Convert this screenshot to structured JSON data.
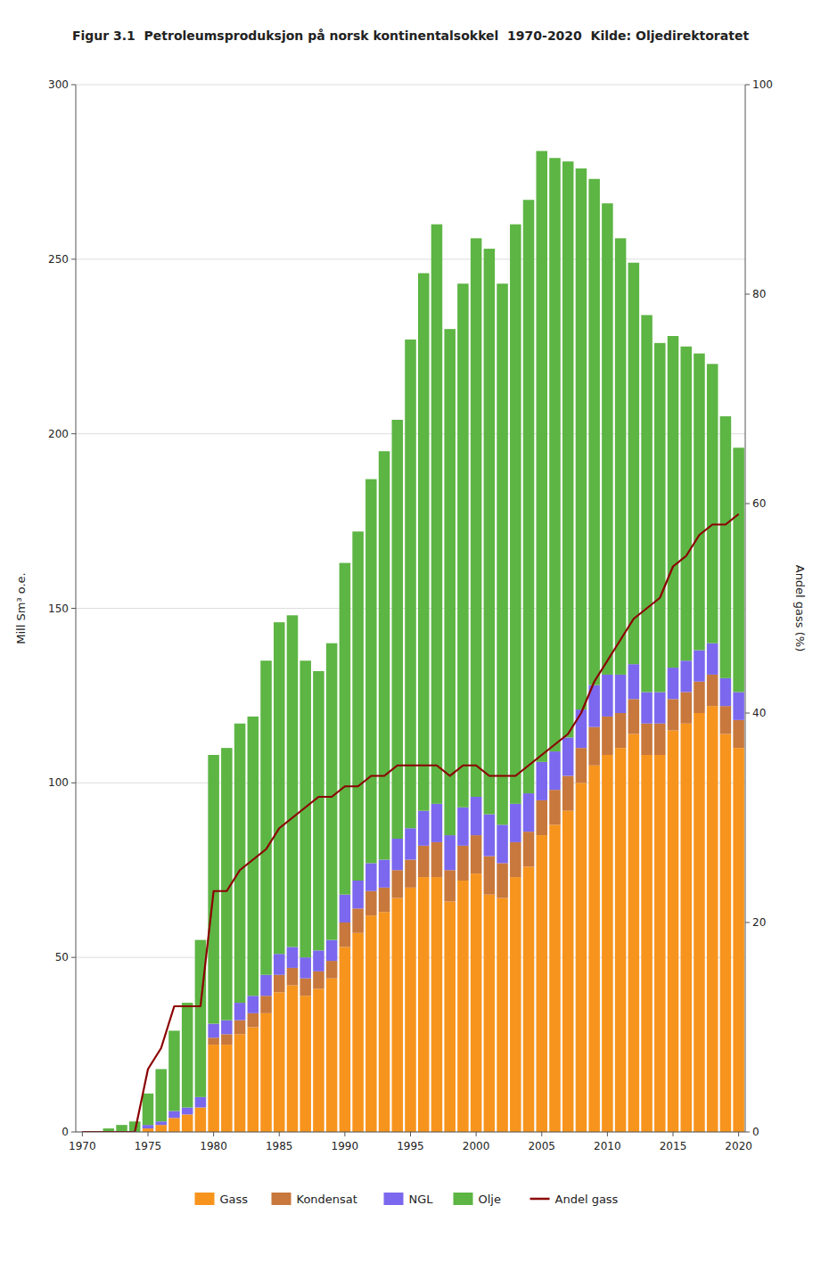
{
  "chart_data": {
    "type": "bar",
    "stacked": true,
    "title": "Figur 3.1  Petroleumsproduksjon på norsk kontinentalsokkel  1970-2020  Kilde: Oljedirektoratet",
    "ylabel": "Mill Sm³ o.e.",
    "y2label": "Andel gass (%)",
    "x": [
      1970,
      1971,
      1972,
      1973,
      1974,
      1975,
      1976,
      1977,
      1978,
      1979,
      1980,
      1981,
      1982,
      1983,
      1984,
      1985,
      1986,
      1987,
      1988,
      1989,
      1990,
      1991,
      1992,
      1993,
      1994,
      1995,
      1996,
      1997,
      1998,
      1999,
      2000,
      2001,
      2002,
      2003,
      2004,
      2005,
      2006,
      2007,
      2008,
      2009,
      2010,
      2011,
      2012,
      2013,
      2014,
      2015,
      2016,
      2017,
      2018,
      2019,
      2020
    ],
    "xlim": [
      1969.5,
      2020.5
    ],
    "xticks": [
      1970,
      1975,
      1980,
      1985,
      1990,
      1995,
      2000,
      2005,
      2010,
      2015,
      2020
    ],
    "ylim": [
      0,
      300
    ],
    "yticks": [
      0,
      50,
      100,
      150,
      200,
      250,
      300
    ],
    "y2lim": [
      0,
      100
    ],
    "y2ticks": [
      0,
      20,
      40,
      60,
      80,
      100
    ],
    "grid": true,
    "legend": "bottom",
    "series": [
      {
        "name": "Gass",
        "type": "bar",
        "color": "#F7941D",
        "values": [
          0,
          0,
          0,
          0,
          0,
          1,
          2,
          4,
          5,
          7,
          25,
          25,
          28,
          30,
          34,
          40,
          42,
          39,
          41,
          44,
          53,
          57,
          62,
          63,
          67,
          70,
          73,
          73,
          66,
          72,
          74,
          68,
          67,
          73,
          76,
          85,
          88,
          92,
          100,
          105,
          108,
          110,
          114,
          108,
          108,
          115,
          117,
          120,
          122,
          114,
          110
        ]
      },
      {
        "name": "Kondensat",
        "type": "bar",
        "color": "#C8783C",
        "values": [
          0,
          0,
          0,
          0,
          0,
          0,
          0,
          0,
          0,
          0,
          2,
          3,
          4,
          4,
          5,
          5,
          5,
          5,
          5,
          5,
          7,
          7,
          7,
          7,
          8,
          8,
          9,
          10,
          9,
          10,
          11,
          11,
          10,
          10,
          10,
          10,
          10,
          10,
          10,
          11,
          11,
          10,
          10,
          9,
          9,
          9,
          9,
          9,
          9,
          8,
          8
        ]
      },
      {
        "name": "NGL",
        "type": "bar",
        "color": "#7B68EE",
        "values": [
          0,
          0,
          0,
          0,
          0,
          1,
          1,
          2,
          2,
          3,
          4,
          4,
          5,
          5,
          6,
          6,
          6,
          6,
          6,
          6,
          8,
          8,
          8,
          8,
          9,
          9,
          10,
          11,
          10,
          11,
          11,
          12,
          11,
          11,
          11,
          11,
          11,
          11,
          11,
          12,
          12,
          11,
          10,
          9,
          9,
          9,
          9,
          9,
          9,
          8,
          8
        ]
      },
      {
        "name": "Olje",
        "type": "bar",
        "color": "#5DB544",
        "values": [
          0,
          0,
          1,
          2,
          3,
          9,
          15,
          23,
          30,
          45,
          77,
          78,
          80,
          80,
          90,
          95,
          95,
          85,
          80,
          85,
          95,
          100,
          110,
          117,
          120,
          140,
          154,
          166,
          145,
          150,
          160,
          162,
          155,
          166,
          170,
          175,
          170,
          165,
          155,
          145,
          135,
          125,
          115,
          108,
          100,
          95,
          90,
          85,
          80,
          75,
          70
        ]
      },
      {
        "name": "Andel gass",
        "type": "line",
        "axis": "y2",
        "color": "#8B0000",
        "values": [
          0,
          0,
          0,
          0,
          0,
          6,
          8,
          12,
          12,
          12,
          23,
          23,
          25,
          26,
          27,
          29,
          30,
          31,
          32,
          32,
          33,
          33,
          34,
          34,
          35,
          35,
          35,
          35,
          34,
          35,
          35,
          34,
          34,
          34,
          35,
          36,
          37,
          38,
          40,
          43,
          45,
          47,
          49,
          50,
          51,
          54,
          55,
          57,
          58,
          58,
          59
        ]
      }
    ]
  }
}
